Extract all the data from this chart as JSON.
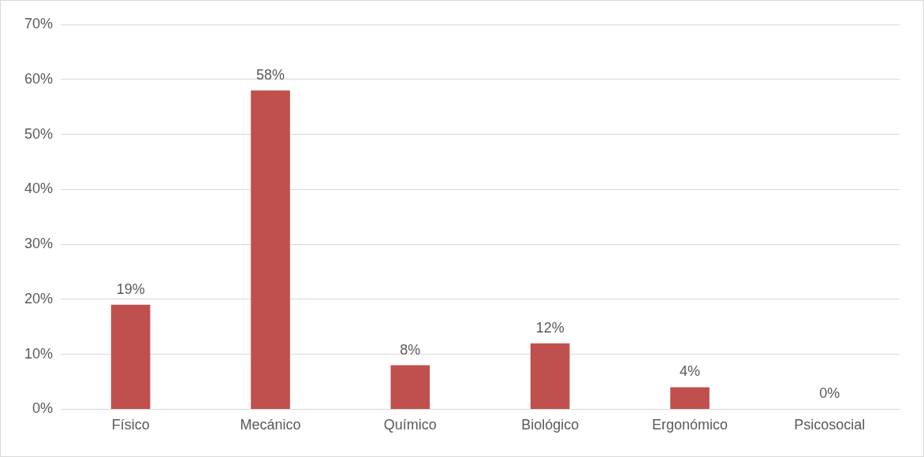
{
  "chart_data": {
    "type": "bar",
    "categories": [
      "Físico",
      "Mecánico",
      "Químico",
      "Biológico",
      "Ergonómico",
      "Psicosocial"
    ],
    "values": [
      19,
      58,
      8,
      12,
      4,
      0
    ],
    "value_labels": [
      "19%",
      "58%",
      "8%",
      "12%",
      "4%",
      "0%"
    ],
    "color": "#c0504d",
    "ylim": [
      0,
      70
    ],
    "yticks": [
      {
        "value": 0,
        "label": "0%"
      },
      {
        "value": 10,
        "label": "10%"
      },
      {
        "value": 20,
        "label": "20%"
      },
      {
        "value": 30,
        "label": "30%"
      },
      {
        "value": 40,
        "label": "40%"
      },
      {
        "value": 50,
        "label": "50%"
      },
      {
        "value": 60,
        "label": "60%"
      },
      {
        "value": 70,
        "label": "70%"
      }
    ],
    "grid": "y",
    "legend": false
  }
}
